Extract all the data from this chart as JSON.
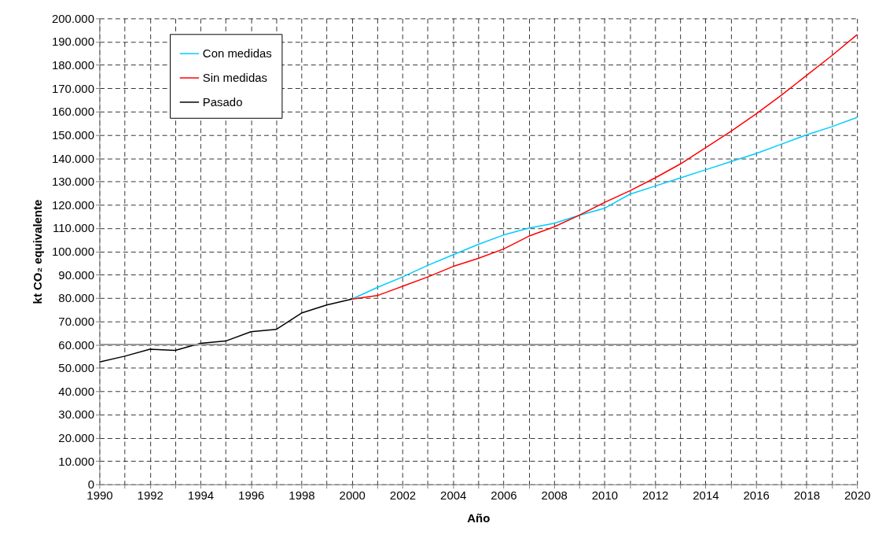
{
  "chart_data": {
    "type": "line",
    "xlabel": "Año",
    "ylabel": "kt CO₂ equivalente",
    "series": [
      {
        "name": "Con medidas",
        "color": "#00ccff",
        "x": [
          2000,
          2001,
          2002,
          2003,
          2004,
          2005,
          2006,
          2007,
          2008,
          2009,
          2010,
          2011,
          2012,
          2013,
          2014,
          2015,
          2016,
          2017,
          2018,
          2019,
          2020
        ],
        "values": [
          79500,
          84500,
          89000,
          94000,
          98500,
          103000,
          107000,
          110000,
          112000,
          115500,
          118500,
          124500,
          128000,
          131500,
          135000,
          138500,
          142000,
          146000,
          150000,
          153500,
          157500
        ]
      },
      {
        "name": "Sin medidas",
        "color": "#ff0000",
        "x": [
          2000,
          2001,
          2002,
          2003,
          2004,
          2005,
          2006,
          2007,
          2008,
          2009,
          2010,
          2011,
          2012,
          2013,
          2014,
          2015,
          2016,
          2017,
          2018,
          2019,
          2020
        ],
        "values": [
          79500,
          81000,
          85000,
          89000,
          93500,
          97000,
          101000,
          106500,
          110500,
          115500,
          121000,
          126000,
          131500,
          137500,
          144500,
          151500,
          159000,
          167000,
          175500,
          184000,
          193000
        ]
      },
      {
        "name": "Pasado",
        "color": "#000000",
        "x": [
          1990,
          1991,
          1992,
          1993,
          1994,
          1995,
          1996,
          1997,
          1998,
          1999,
          2000
        ],
        "values": [
          52500,
          55000,
          58000,
          57500,
          60500,
          61500,
          65500,
          66500,
          73500,
          77000,
          79500
        ]
      }
    ],
    "xlim": [
      1990,
      2020
    ],
    "xticks": [
      1990,
      {
        "value": 1991,
        "label": null
      },
      1992,
      {
        "value": 1993,
        "label": null
      },
      1994,
      {
        "value": 1995,
        "label": null
      },
      1996,
      {
        "value": 1997,
        "label": null
      },
      1998,
      {
        "value": 1999,
        "label": null
      },
      2000,
      {
        "value": 2001,
        "label": null
      },
      2002,
      {
        "value": 2003,
        "label": null
      },
      2004,
      {
        "value": 2005,
        "label": null
      },
      2006,
      {
        "value": 2007,
        "label": null
      },
      2008,
      {
        "value": 2009,
        "label": null
      },
      2010,
      {
        "value": 2011,
        "label": null
      },
      2012,
      {
        "value": 2013,
        "label": null
      },
      2014,
      {
        "value": 2015,
        "label": null
      },
      2016,
      {
        "value": 2017,
        "label": null
      },
      2018,
      {
        "value": 2019,
        "label": null
      },
      2020
    ],
    "ylim": [
      0,
      200000
    ],
    "yticks": [
      0,
      {
        "value": 10000,
        "label": "10.000"
      },
      {
        "value": 20000,
        "label": "20.000"
      },
      {
        "value": 30000,
        "label": "30.000"
      },
      {
        "value": 40000,
        "label": "40.000"
      },
      {
        "value": 50000,
        "label": "50.000"
      },
      {
        "value": 60000,
        "label": "60.000"
      },
      {
        "value": 70000,
        "label": "70.000"
      },
      {
        "value": 80000,
        "label": "80.000"
      },
      {
        "value": 90000,
        "label": "90.000"
      },
      {
        "value": 100000,
        "label": "100.000"
      },
      {
        "value": 110000,
        "label": "110.000"
      },
      {
        "value": 120000,
        "label": "120.000"
      },
      {
        "value": 130000,
        "label": "130.000"
      },
      {
        "value": 140000,
        "label": "140.000"
      },
      {
        "value": 150000,
        "label": "150.000"
      },
      {
        "value": 160000,
        "label": "160.000"
      },
      {
        "value": 170000,
        "label": "170.000"
      },
      {
        "value": 180000,
        "label": "180.000"
      },
      {
        "value": 190000,
        "label": "190.000"
      },
      {
        "value": 200000,
        "label": "200.000"
      }
    ],
    "ref_lines": [
      {
        "axis": "y",
        "value": 60000,
        "color": "#999999",
        "line_style": "solid"
      }
    ],
    "grid": true,
    "legend": "top left",
    "marker": "none",
    "line_style": "solid"
  }
}
